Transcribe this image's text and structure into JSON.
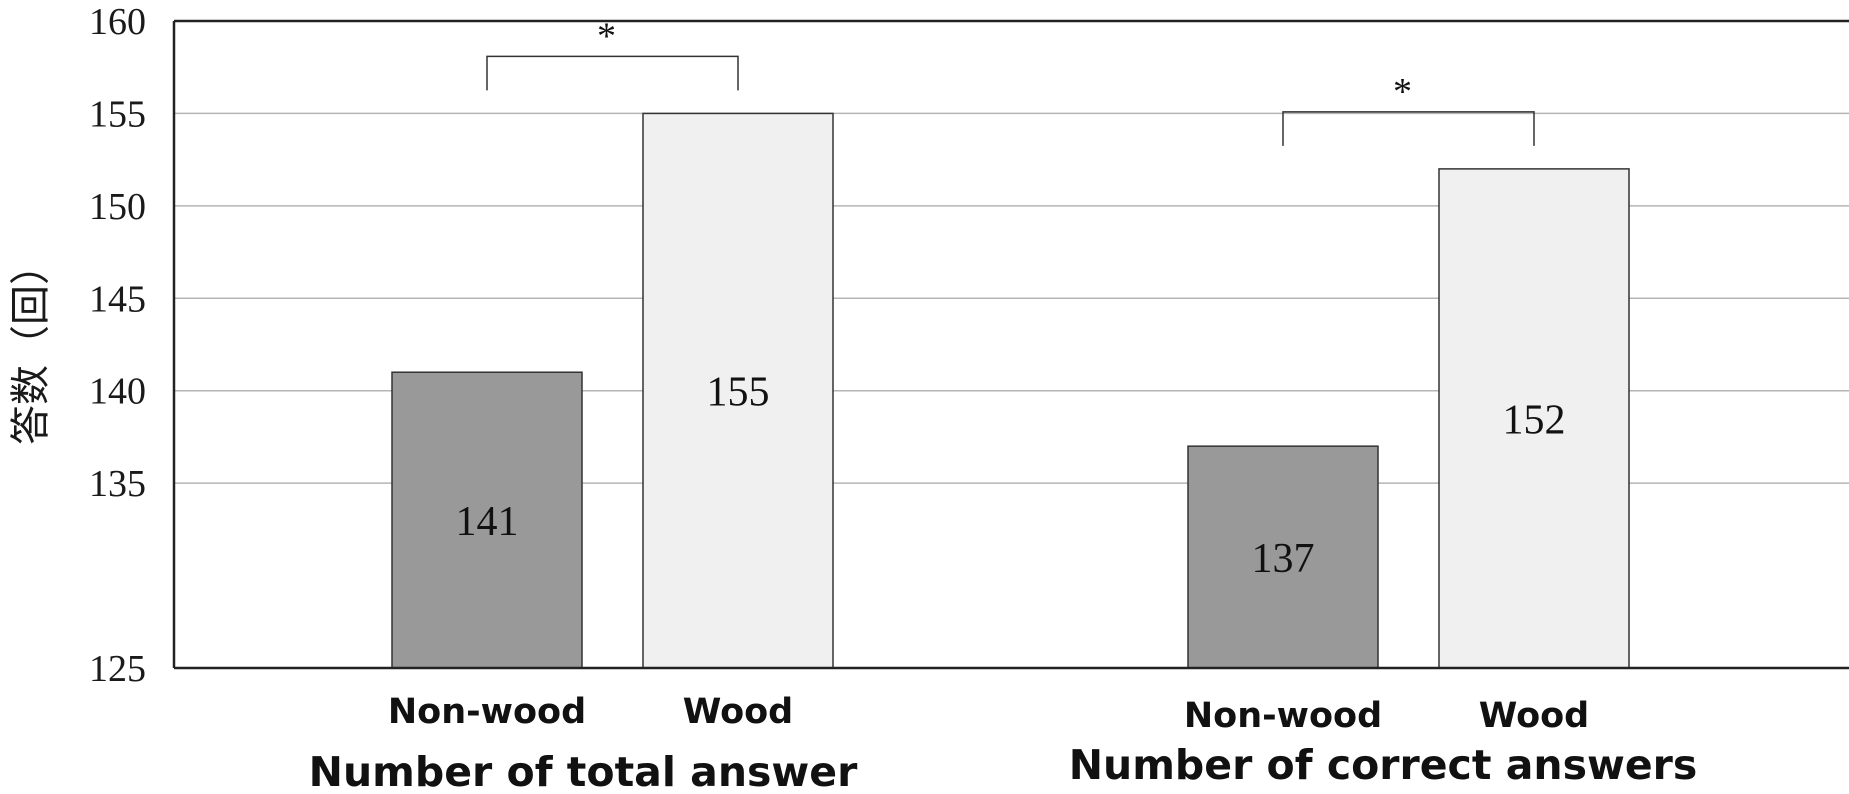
{
  "chart_data": {
    "type": "bar",
    "ylabel": "答数（回）",
    "ylim": [
      125,
      160
    ],
    "yticks": [
      125,
      135,
      140,
      145,
      150,
      155,
      160
    ],
    "grid": true,
    "groups": [
      {
        "label": "Number of total answer",
        "significance": "*",
        "bars": [
          {
            "category": "Non-wood",
            "value": 141,
            "value_label": "141",
            "color": "#999999"
          },
          {
            "category": "Wood",
            "value": 155,
            "value_label": "155",
            "color": "#f0f0f0"
          }
        ]
      },
      {
        "label": "Number of correct answers",
        "significance": "*",
        "bars": [
          {
            "category": "Non-wood",
            "value": 137,
            "value_label": "137",
            "color": "#999999"
          },
          {
            "category": "Wood",
            "value": 152,
            "value_label": "152",
            "color": "#f0f0f0"
          }
        ]
      }
    ]
  }
}
